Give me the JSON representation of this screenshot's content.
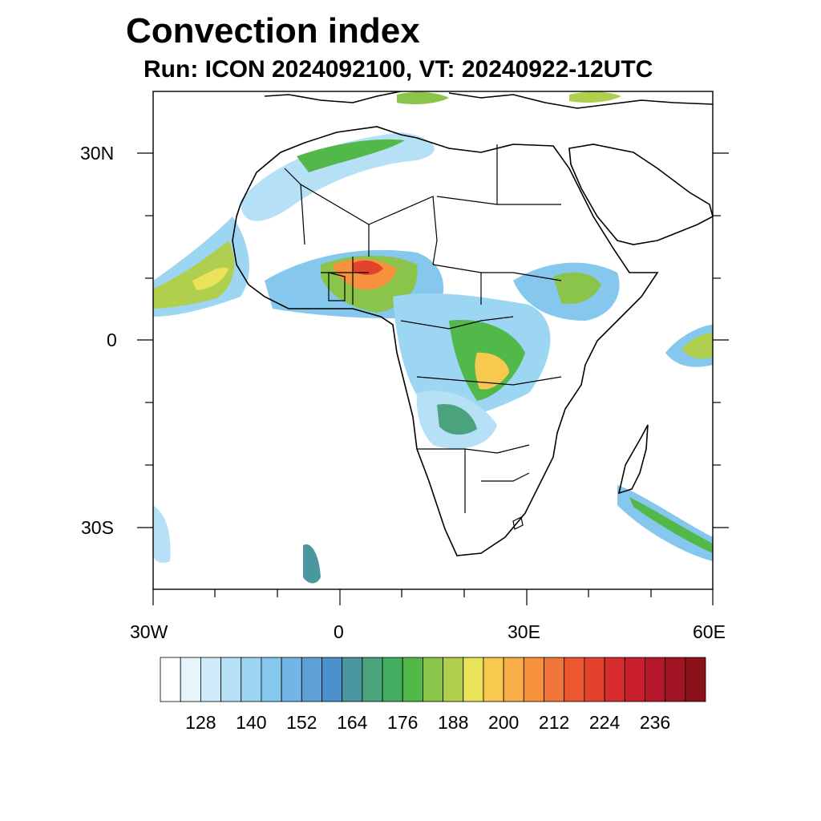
{
  "title": "Convection index",
  "subtitle": "Run: ICON 2024092100,  VT: 20240922-12UTC",
  "map": {
    "lon_range": [
      -30,
      60
    ],
    "lat_range": [
      -40,
      40
    ],
    "lon_ticks": [
      "30W",
      "0",
      "30E",
      "60E"
    ],
    "lat_ticks": [
      "30N",
      "0",
      "30S"
    ],
    "ocean_color": "#ffffff",
    "land_border_color": "#000000"
  },
  "colorbar": {
    "labels": [
      "128",
      "140",
      "152",
      "164",
      "176",
      "188",
      "200",
      "212",
      "224",
      "236"
    ],
    "colors": [
      "#ffffff",
      "#e6f4fc",
      "#cfeaf8",
      "#b6e0f6",
      "#9dd6f3",
      "#86c7ee",
      "#72b5e6",
      "#5e9fd6",
      "#4b8fcc",
      "#4a97a0",
      "#4aa37c",
      "#43ad62",
      "#52b84a",
      "#8ac44b",
      "#b0cf4e",
      "#e9e35a",
      "#f7c94e",
      "#f7ad48",
      "#f6923e",
      "#f17438",
      "#ea5731",
      "#e3432c",
      "#d72c2c",
      "#c91f2c",
      "#b5182a",
      "#a11423",
      "#8b1219"
    ]
  }
}
